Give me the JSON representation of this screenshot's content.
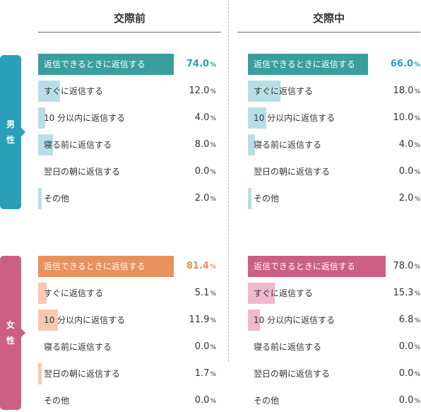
{
  "colors": {
    "male_accent": "#2a9fb8",
    "male_top_bar": "#3a9e9e",
    "male_bar": "#b8dfe6",
    "male_top_value": "#2a9fb8",
    "female_accent": "#cc5f84",
    "female_before_top_bar": "#e8915e",
    "female_before_top_value": "#e8915e",
    "female_before_bar": "#f8c8b0",
    "female_during_top_bar": "#cc5f84",
    "female_during_bar": "#f0b8cc",
    "text": "#333333"
  },
  "headers": {
    "before": "交際前",
    "during": "交際中"
  },
  "gender_labels": {
    "male": "男性",
    "female": "女性"
  },
  "pct_unit": "%",
  "chart_data": [
    {
      "type": "bar",
      "title": "交際前",
      "group": "男性",
      "categories": [
        "返信できるときに返信する",
        "すぐに返信する",
        "10 分以内に返信する",
        "寝る前に返信する",
        "翌日の朝に返信する",
        "その他"
      ],
      "values": [
        74.0,
        12.0,
        4.0,
        8.0,
        0.0,
        2.0
      ],
      "value_labels": [
        "74.0",
        "12.0",
        "4.0",
        "8.0",
        "0.0",
        "2.0"
      ],
      "xlim": [
        0,
        100
      ]
    },
    {
      "type": "bar",
      "title": "交際中",
      "group": "男性",
      "categories": [
        "返信できるときに返信する",
        "すぐに返信する",
        "10 分以内に返信する",
        "寝る前に返信する",
        "翌日の朝に返信する",
        "その他"
      ],
      "values": [
        66.0,
        18.0,
        10.0,
        4.0,
        0.0,
        2.0
      ],
      "value_labels": [
        "66.0",
        "18.0",
        "10.0",
        "4.0",
        "0.0",
        "2.0"
      ],
      "xlim": [
        0,
        100
      ]
    },
    {
      "type": "bar",
      "title": "交際前",
      "group": "女性",
      "categories": [
        "返信できるときに返信する",
        "すぐに返信する",
        "10 分以内に返信する",
        "寝る前に返信する",
        "翌日の朝に返信する",
        "その他"
      ],
      "values": [
        81.4,
        5.1,
        11.9,
        0.0,
        1.7,
        0.0
      ],
      "value_labels": [
        "81.4",
        "5.1",
        "11.9",
        "0.0",
        "1.7",
        "0.0"
      ],
      "xlim": [
        0,
        100
      ]
    },
    {
      "type": "bar",
      "title": "交際中",
      "group": "女性",
      "categories": [
        "返信できるときに返信する",
        "すぐに返信する",
        "10 分以内に返信する",
        "寝る前に返信する",
        "翌日の朝に返信する",
        "その他"
      ],
      "values": [
        78.0,
        15.3,
        6.8,
        0.0,
        0.0,
        0.0
      ],
      "value_labels": [
        "78.0",
        "15.3",
        "6.8",
        "0.0",
        "0.0",
        "0.0"
      ],
      "xlim": [
        0,
        100
      ]
    }
  ]
}
